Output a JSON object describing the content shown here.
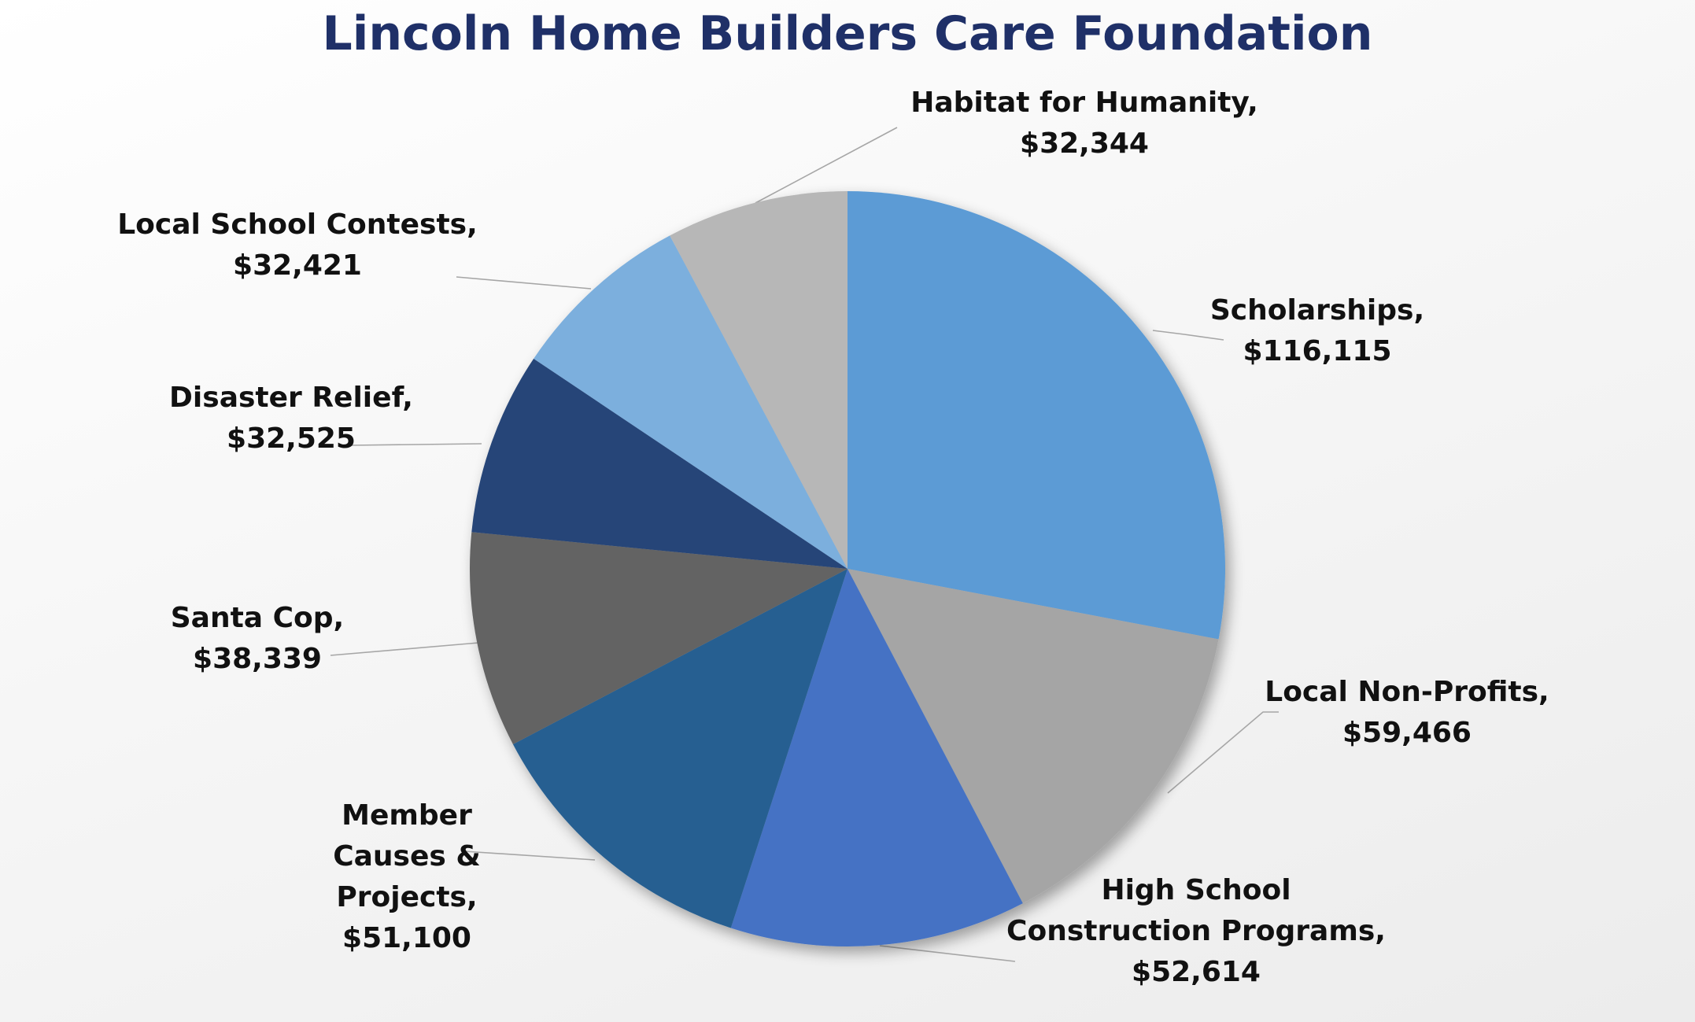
{
  "chart_data": {
    "type": "pie",
    "title": "Lincoln Home Builders Care Foundation",
    "start_angle_deg": 0,
    "direction": "clockwise",
    "slices": [
      {
        "label": "Scholarships,",
        "value_text": "$116,115",
        "value": 116115,
        "color": "#5b9bd5"
      },
      {
        "label": "Local Non-Profits,",
        "value_text": "$59,466",
        "value": 59466,
        "color": "#a5a5a5"
      },
      {
        "label": "High School Construction Programs,",
        "value_text": "$52,614",
        "value": 52614,
        "color": "#4472c4"
      },
      {
        "label": "Member Causes & Projects,",
        "value_text": "$51,100",
        "value": 51100,
        "color": "#255e91"
      },
      {
        "label": "Santa Cop,",
        "value_text": "$38,339",
        "value": 38339,
        "color": "#636363"
      },
      {
        "label": "Disaster Relief,",
        "value_text": "$32,525",
        "value": 32525,
        "color": "#264478"
      },
      {
        "label": "Local School Contests,",
        "value_text": "$32,421",
        "value": 32421,
        "color": "#7cafdd"
      },
      {
        "label": "Habitat for Humanity,",
        "value_text": "$32,344",
        "value": 32344,
        "color": "#b7b7b7"
      }
    ]
  }
}
